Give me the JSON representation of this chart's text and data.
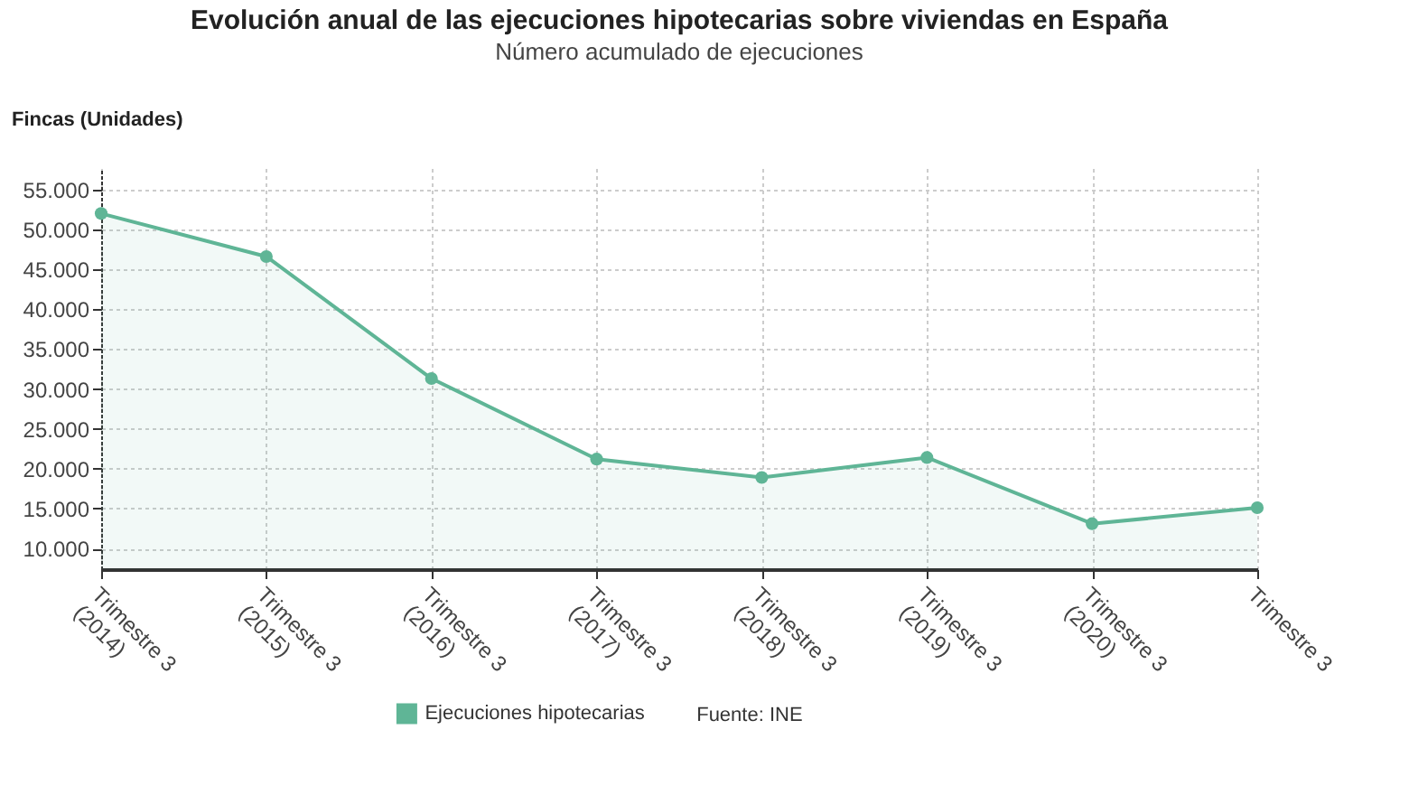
{
  "chart_data": {
    "type": "area",
    "title": "Evolución anual de las ejecuciones hipotecarias sobre viviendas en España",
    "subtitle": "Número acumulado de ejecuciones",
    "ylabel": "Fincas (Unidades)",
    "categories": [
      "Trimestre 3 (2014)",
      "Trimestre 3 (2015)",
      "Trimestre 3 (2016)",
      "Trimestre 3 (2017)",
      "Trimestre 3 (2018)",
      "Trimestre 3 (2019)",
      "Trimestre 3 (2020)",
      "Trimestre 3"
    ],
    "series": [
      {
        "name": "Ejecuciones hipotecarias",
        "color": "#5fb596",
        "values": [
          52000,
          46600,
          31300,
          21200,
          18900,
          21400,
          13100,
          15100
        ]
      }
    ],
    "ylim": [
      7400,
      57700
    ],
    "yticks": [
      {
        "value": 10000,
        "label": "10.000"
      },
      {
        "value": 15000,
        "label": "15.000"
      },
      {
        "value": 20000,
        "label": "20.000"
      },
      {
        "value": 25000,
        "label": "25.000"
      },
      {
        "value": 30000,
        "label": "30.000"
      },
      {
        "value": 35000,
        "label": "35.000"
      },
      {
        "value": 40000,
        "label": "40.000"
      },
      {
        "value": 45000,
        "label": "45.000"
      },
      {
        "value": 50000,
        "label": "50.000"
      },
      {
        "value": 55000,
        "label": "55.000"
      }
    ],
    "grid": true,
    "marker": "circle",
    "legend": "bottom",
    "annotations": [
      "Fuente: INE"
    ]
  }
}
